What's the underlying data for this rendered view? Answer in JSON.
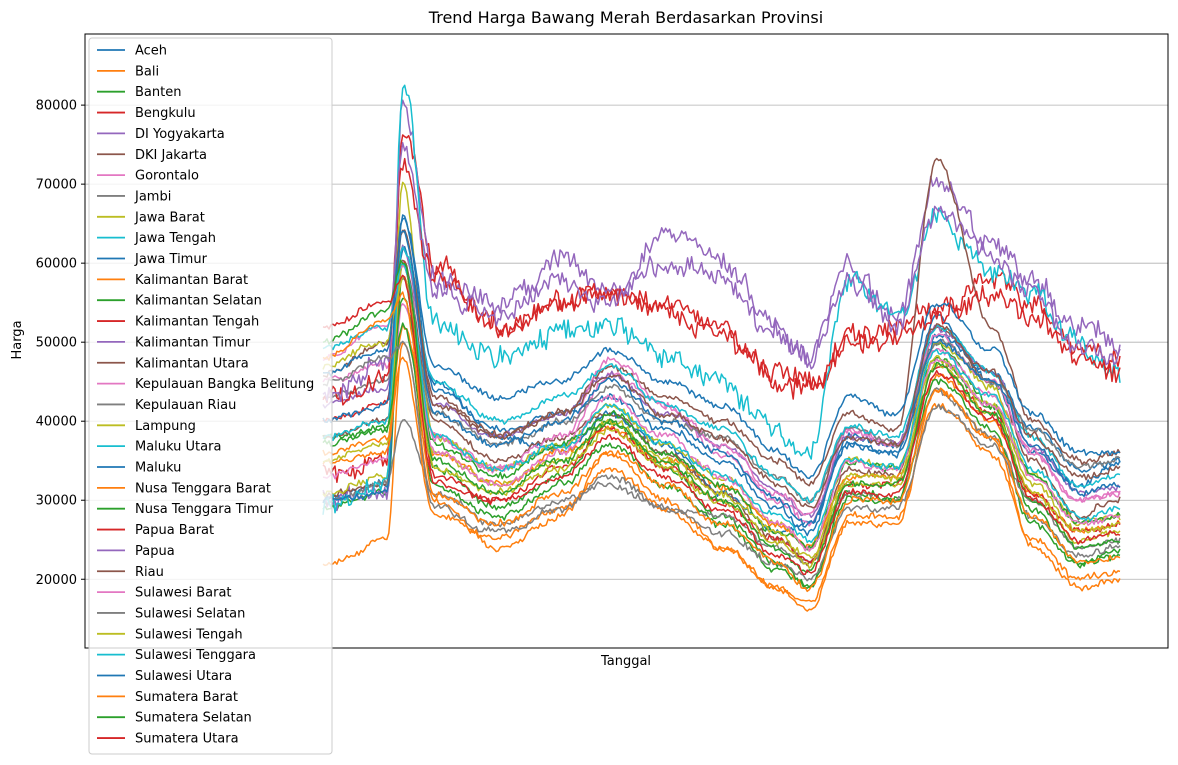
{
  "chart_data": {
    "type": "line",
    "title": "Trend Harga Bawang Merah Berdasarkan Provinsi",
    "xlabel": "Tanggal",
    "ylabel": "Harga",
    "ylim": [
      11300,
      89000
    ],
    "yticks": [
      20000,
      30000,
      40000,
      50000,
      60000,
      70000,
      80000
    ],
    "ytick_labels": [
      "20000",
      "30000",
      "40000",
      "50000",
      "60000",
      "70000",
      "80000"
    ],
    "grid": "horizontal",
    "legend_position": "upper-left",
    "x_knots": [
      0,
      0.08,
      0.1,
      0.14,
      0.22,
      0.3,
      0.36,
      0.43,
      0.5,
      0.57,
      0.61,
      0.66,
      0.72,
      0.77,
      0.84,
      0.89,
      0.95,
      1.0
    ],
    "series": [
      {
        "name": "Aceh",
        "color": "#1f77b4",
        "values": [
          30000,
          32000,
          62000,
          45000,
          38000,
          36000,
          41000,
          37000,
          31000,
          26000,
          27000,
          37000,
          36000,
          53000,
          45000,
          36000,
          32000,
          35000
        ]
      },
      {
        "name": "Bali",
        "color": "#ff7f0e",
        "values": [
          22000,
          25000,
          50000,
          30000,
          24000,
          28000,
          36000,
          30000,
          24000,
          19000,
          16000,
          27000,
          27000,
          44000,
          38000,
          24000,
          19000,
          20000
        ]
      },
      {
        "name": "Banten",
        "color": "#2ca02c",
        "values": [
          29000,
          31000,
          58000,
          34000,
          29000,
          33000,
          40000,
          34000,
          28000,
          22000,
          19000,
          31000,
          30000,
          50000,
          42000,
          29000,
          22000,
          24000
        ]
      },
      {
        "name": "Bengkulu",
        "color": "#d62728",
        "values": [
          33000,
          35000,
          76000,
          60000,
          52000,
          55000,
          57000,
          55000,
          52000,
          46000,
          45000,
          50000,
          52000,
          55000,
          58000,
          55000,
          50000,
          48000
        ]
      },
      {
        "name": "DI Yogyakarta",
        "color": "#9467bd",
        "values": [
          30000,
          31000,
          80000,
          58000,
          55000,
          61000,
          56000,
          64000,
          60000,
          52000,
          48000,
          60000,
          53000,
          70000,
          63000,
          58000,
          52000,
          50000
        ]
      },
      {
        "name": "DKI Jakarta",
        "color": "#8c564b",
        "values": [
          31000,
          32000,
          60000,
          40000,
          35000,
          38000,
          41000,
          36000,
          31000,
          25000,
          22000,
          34000,
          33000,
          52000,
          45000,
          35000,
          28000,
          30000
        ]
      },
      {
        "name": "Gorontalo",
        "color": "#e377c2",
        "values": [
          33000,
          35000,
          55000,
          38000,
          34000,
          37000,
          46000,
          42000,
          36000,
          30000,
          27000,
          39000,
          37000,
          49000,
          43000,
          36000,
          30000,
          31000
        ]
      },
      {
        "name": "Jambi",
        "color": "#7f7f7f",
        "values": [
          30000,
          32000,
          40000,
          31000,
          27000,
          30000,
          32000,
          29000,
          28000,
          24000,
          22000,
          31000,
          30000,
          44000,
          38000,
          30000,
          24000,
          25000
        ]
      },
      {
        "name": "Jawa Barat",
        "color": "#bcbd22",
        "values": [
          31000,
          33000,
          70000,
          38000,
          34000,
          37000,
          42000,
          37000,
          33000,
          27000,
          24000,
          35000,
          34000,
          50000,
          44000,
          33000,
          27000,
          28000
        ]
      },
      {
        "name": "Jawa Tengah",
        "color": "#17becf",
        "values": [
          29000,
          32000,
          83000,
          52000,
          48000,
          51000,
          52000,
          48000,
          45000,
          39000,
          36000,
          57000,
          53000,
          65000,
          59000,
          55000,
          50000,
          47000
        ]
      },
      {
        "name": "Jawa Timur",
        "color": "#1f77b4",
        "values": [
          30000,
          31000,
          66000,
          44000,
          39000,
          41000,
          43000,
          39000,
          35000,
          29000,
          26000,
          38000,
          37000,
          51000,
          46000,
          39000,
          34000,
          35000
        ]
      },
      {
        "name": "Kalimantan Barat",
        "color": "#ff7f0e",
        "values": [
          35000,
          36000,
          52000,
          36000,
          32000,
          36000,
          39000,
          35000,
          32000,
          27000,
          24000,
          33000,
          33000,
          46000,
          40000,
          31000,
          26000,
          27000
        ]
      },
      {
        "name": "Kalimantan Selatan",
        "color": "#2ca02c",
        "values": [
          38000,
          39000,
          56000,
          37000,
          33000,
          37000,
          41000,
          36000,
          32000,
          26000,
          24000,
          35000,
          34000,
          48000,
          42000,
          33000,
          27000,
          28000
        ]
      },
      {
        "name": "Kalimantan Tengah",
        "color": "#d62728",
        "values": [
          40000,
          42000,
          60000,
          33000,
          30000,
          34000,
          39000,
          34000,
          30000,
          25000,
          22000,
          32000,
          32000,
          47000,
          41000,
          31000,
          26000,
          27000
        ]
      },
      {
        "name": "Kalimantan Timur",
        "color": "#9467bd",
        "values": [
          42000,
          44000,
          62000,
          42000,
          38000,
          41000,
          46000,
          41000,
          37000,
          31000,
          28000,
          38000,
          37000,
          52000,
          46000,
          37000,
          31000,
          32000
        ]
      },
      {
        "name": "Kalimantan Utara",
        "color": "#8c564b",
        "values": [
          38000,
          40000,
          64000,
          42000,
          38000,
          41000,
          47000,
          43000,
          40000,
          35000,
          32000,
          41000,
          39000,
          73000,
          52000,
          40000,
          35000,
          36000
        ]
      },
      {
        "name": "Kepulauan Bangka Belitung",
        "color": "#e377c2",
        "values": [
          45000,
          47000,
          60000,
          38000,
          34000,
          38000,
          48000,
          42000,
          37000,
          31000,
          28000,
          39000,
          37000,
          51000,
          45000,
          36000,
          30000,
          31000
        ]
      },
      {
        "name": "Kepulauan Riau",
        "color": "#7f7f7f",
        "values": [
          43000,
          45000,
          58000,
          41000,
          37000,
          40000,
          44000,
          40000,
          38000,
          33000,
          30000,
          39000,
          37000,
          50000,
          45000,
          39000,
          34000,
          35000
        ]
      },
      {
        "name": "Lampung",
        "color": "#bcbd22",
        "values": [
          35000,
          37000,
          60000,
          36000,
          32000,
          35000,
          40000,
          35000,
          31000,
          26000,
          23000,
          33000,
          33000,
          48000,
          42000,
          32000,
          26000,
          27000
        ]
      },
      {
        "name": "Maluku Utara",
        "color": "#17becf",
        "values": [
          38000,
          40000,
          62000,
          45000,
          40000,
          43000,
          47000,
          42000,
          39000,
          33000,
          30000,
          39000,
          38000,
          52000,
          46000,
          38000,
          32000,
          33000
        ]
      },
      {
        "name": "Maluku",
        "color": "#1f77b4",
        "values": [
          40000,
          42000,
          66000,
          47000,
          43000,
          45000,
          49000,
          45000,
          42000,
          36000,
          33000,
          43000,
          41000,
          55000,
          49000,
          41000,
          36000,
          36000
        ]
      },
      {
        "name": "Nusa Tenggara Barat",
        "color": "#ff7f0e",
        "values": [
          36000,
          38000,
          48000,
          28000,
          25000,
          29000,
          34000,
          29000,
          24000,
          19000,
          17000,
          28000,
          28000,
          42000,
          36000,
          25000,
          20000,
          21000
        ]
      },
      {
        "name": "Nusa Tenggara Timur",
        "color": "#2ca02c",
        "values": [
          37000,
          39000,
          52000,
          32000,
          28000,
          32000,
          37000,
          32000,
          27000,
          21000,
          19000,
          30000,
          30000,
          45000,
          39000,
          27000,
          22000,
          23000
        ]
      },
      {
        "name": "Papua Barat",
        "color": "#d62728",
        "values": [
          42000,
          45000,
          72000,
          58000,
          52000,
          55000,
          56000,
          54000,
          51000,
          45000,
          44000,
          50000,
          51000,
          54000,
          56000,
          53000,
          48000,
          46000
        ]
      },
      {
        "name": "Papua",
        "color": "#9467bd",
        "values": [
          44000,
          47000,
          76000,
          57000,
          53000,
          58000,
          55000,
          60000,
          58000,
          51000,
          48000,
          58000,
          52000,
          67000,
          61000,
          56000,
          50000,
          48000
        ]
      },
      {
        "name": "Riau",
        "color": "#8c564b",
        "values": [
          46000,
          50000,
          64000,
          43000,
          38000,
          41000,
          46000,
          41000,
          38000,
          32000,
          29000,
          38000,
          37000,
          52000,
          46000,
          38000,
          33000,
          34000
        ]
      },
      {
        "name": "Sulawesi Barat",
        "color": "#e377c2",
        "values": [
          48000,
          52000,
          60000,
          36000,
          32000,
          36000,
          43000,
          38000,
          33000,
          27000,
          24000,
          35000,
          34000,
          48000,
          42000,
          33000,
          27000,
          28000
        ]
      },
      {
        "name": "Sulawesi Selatan",
        "color": "#7f7f7f",
        "values": [
          45000,
          48000,
          50000,
          29000,
          26000,
          29000,
          33000,
          29000,
          26000,
          22000,
          20000,
          29000,
          29000,
          42000,
          37000,
          28000,
          23000,
          24000
        ]
      },
      {
        "name": "Sulawesi Tengah",
        "color": "#bcbd22",
        "values": [
          47000,
          50000,
          58000,
          34000,
          31000,
          34000,
          39000,
          34000,
          30000,
          25000,
          22000,
          32000,
          32000,
          47000,
          41000,
          31000,
          25000,
          26000
        ]
      },
      {
        "name": "Sulawesi Tenggara",
        "color": "#17becf",
        "values": [
          49000,
          52000,
          60000,
          38000,
          34000,
          37000,
          42000,
          37000,
          33000,
          28000,
          25000,
          35000,
          34000,
          49000,
          43000,
          34000,
          28000,
          29000
        ]
      },
      {
        "name": "Sulawesi Utara",
        "color": "#1f77b4",
        "values": [
          46000,
          49000,
          64000,
          41000,
          37000,
          40000,
          45000,
          40000,
          36000,
          30000,
          27000,
          37000,
          36000,
          50000,
          45000,
          37000,
          31000,
          32000
        ]
      },
      {
        "name": "Sumatera Barat",
        "color": "#ff7f0e",
        "values": [
          48000,
          53000,
          56000,
          31000,
          27000,
          31000,
          36000,
          32000,
          27000,
          22000,
          19000,
          30000,
          30000,
          44000,
          38000,
          28000,
          22000,
          23000
        ]
      },
      {
        "name": "Sumatera Selatan",
        "color": "#2ca02c",
        "values": [
          50000,
          54000,
          60000,
          35000,
          31000,
          35000,
          40000,
          35000,
          30000,
          24000,
          21000,
          32000,
          32000,
          47000,
          41000,
          30000,
          24000,
          25000
        ]
      },
      {
        "name": "Sumatera Utara",
        "color": "#d62728",
        "values": [
          52000,
          55000,
          58000,
          32000,
          30000,
          33000,
          38000,
          33000,
          29000,
          23000,
          21000,
          31000,
          31000,
          46000,
          40000,
          30000,
          25000,
          26000
        ]
      }
    ]
  }
}
